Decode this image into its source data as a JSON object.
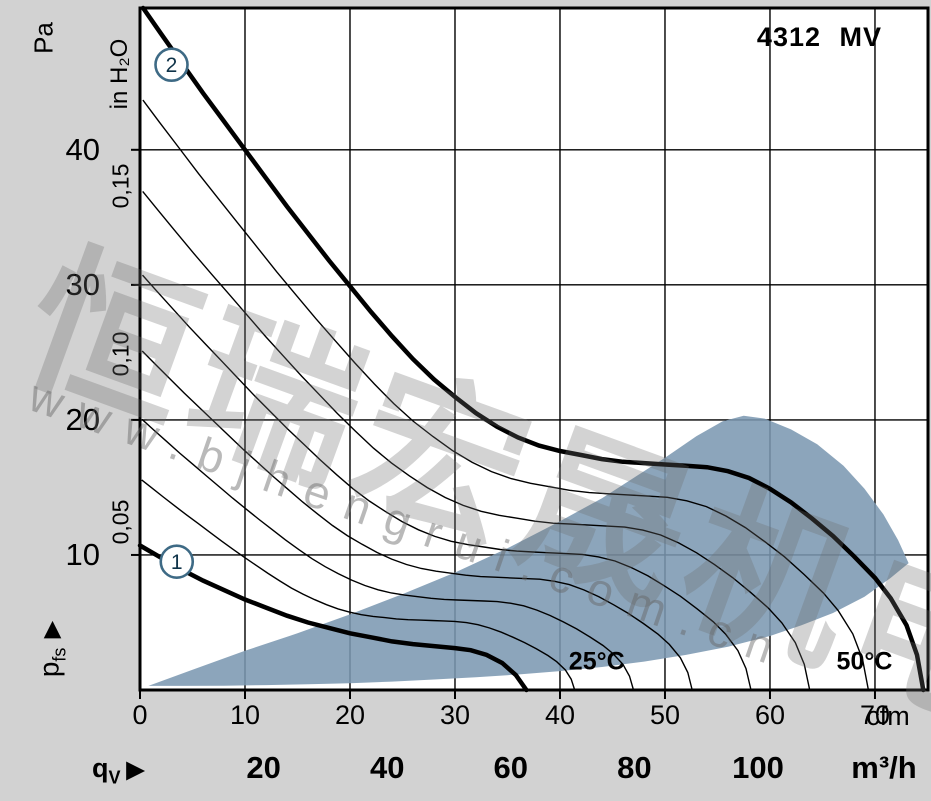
{
  "title": "4312 MV",
  "watermark": {
    "cjk": "恒瑞宏晟机电",
    "url": "www.bjhengrui.com.cn"
  },
  "labels": {
    "pa_unit": "Pa",
    "inh2o_unit": "in H₂O",
    "cfm_unit": "cfm",
    "m3h_unit": "m³/h",
    "pfs_main": "p",
    "pfs_sub": "fs",
    "qv_main": "q",
    "qv_sub": "V",
    "arrow": "▶"
  },
  "colors": {
    "background": "#d2d2d2",
    "plot_background": "#ffffff",
    "grid": "#000000",
    "curve": "#000000",
    "region_fill": "#7b98b1",
    "marker_ring": "#3e6a85",
    "marker_text": "#0f3349"
  },
  "chart_data": {
    "type": "line",
    "title": "4312 MV",
    "description": "Fan performance curves: static pressure pfs vs volume flow qV with operating region between 25°C and 50°C",
    "x_axis_primary": {
      "unit": "cfm",
      "ticks": [
        0,
        10,
        20,
        30,
        40,
        50,
        60,
        70
      ],
      "range": [
        0,
        75.05
      ]
    },
    "x_axis_secondary": {
      "unit": "m³/h",
      "ticks": [
        20,
        40,
        60,
        80,
        100
      ],
      "cfm_per_m3h": 0.5886
    },
    "y_axis_primary": {
      "unit": "Pa",
      "ticks": [
        10,
        20,
        30,
        40
      ],
      "range": [
        0,
        50.5
      ]
    },
    "y_axis_secondary": {
      "unit": "in H₂O",
      "ticks": [
        {
          "label": "0,05",
          "pa": 12.45
        },
        {
          "label": "0,10",
          "pa": 24.9
        },
        {
          "label": "0,15",
          "pa": 37.35
        }
      ]
    },
    "series": [
      {
        "name": "max-speed-curve",
        "marker": "2",
        "marker_pos": {
          "cfm": 3.0,
          "pa": 46.3
        },
        "points": [
          [
            0.3,
            50.5
          ],
          [
            2,
            48.6
          ],
          [
            4,
            46.4
          ],
          [
            6,
            44.2
          ],
          [
            8,
            42.1
          ],
          [
            10,
            40
          ],
          [
            12,
            37.9
          ],
          [
            14,
            35.8
          ],
          [
            16,
            33.8
          ],
          [
            18,
            31.8
          ],
          [
            20,
            29.9
          ],
          [
            22,
            28
          ],
          [
            24,
            26.2
          ],
          [
            26,
            24.5
          ],
          [
            28,
            23
          ],
          [
            30,
            21.7
          ],
          [
            32,
            20.5
          ],
          [
            34,
            19.5
          ],
          [
            36,
            18.7
          ],
          [
            38,
            18.1
          ],
          [
            40,
            17.7
          ],
          [
            42,
            17.4
          ],
          [
            44,
            17.1
          ],
          [
            46,
            16.9
          ],
          [
            48,
            16.8
          ],
          [
            50,
            16.7
          ],
          [
            52,
            16.6
          ],
          [
            54,
            16.5
          ],
          [
            56,
            16.2
          ],
          [
            58,
            15.7
          ],
          [
            60,
            14.9
          ],
          [
            62,
            13.9
          ],
          [
            64,
            12.7
          ],
          [
            66,
            11.4
          ],
          [
            68,
            9.9
          ],
          [
            70,
            8.3
          ],
          [
            71.5,
            6.8
          ],
          [
            73,
            4.8
          ],
          [
            74,
            2.6
          ],
          [
            74.6,
            0
          ]
        ]
      },
      {
        "name": "min-speed-curve",
        "marker": "1",
        "marker_pos": {
          "cfm": 3.5,
          "pa": 9.5
        },
        "points": [
          [
            0,
            10.7
          ],
          [
            2,
            9.8
          ],
          [
            4,
            8.9
          ],
          [
            6,
            8.1
          ],
          [
            8,
            7.4
          ],
          [
            10,
            6.7
          ],
          [
            12,
            6.1
          ],
          [
            14,
            5.5
          ],
          [
            16,
            5
          ],
          [
            18,
            4.6
          ],
          [
            20,
            4.2
          ],
          [
            22,
            3.9
          ],
          [
            24,
            3.6
          ],
          [
            26,
            3.4
          ],
          [
            28,
            3.25
          ],
          [
            30,
            3.1
          ],
          [
            31.5,
            2.95
          ],
          [
            33,
            2.6
          ],
          [
            34.5,
            2
          ],
          [
            35.8,
            1.1
          ],
          [
            36.8,
            0
          ]
        ]
      }
    ],
    "thin_curve_speed_ratios": [
      0.93,
      0.855,
      0.78,
      0.705,
      0.63,
      0.555
    ],
    "operating_region": {
      "color": "#7b98b1",
      "points": [
        [
          0.8,
          0.3
        ],
        [
          5,
          1.5
        ],
        [
          10,
          2.9
        ],
        [
          15,
          4.2
        ],
        [
          20,
          5.6
        ],
        [
          25,
          7.1
        ],
        [
          30,
          8.7
        ],
        [
          35,
          10.5
        ],
        [
          40,
          12.5
        ],
        [
          44,
          14.2
        ],
        [
          47,
          15.7
        ],
        [
          50,
          17.2
        ],
        [
          53,
          18.8
        ],
        [
          55.5,
          19.9
        ],
        [
          57.5,
          20.3
        ],
        [
          59.5,
          20.1
        ],
        [
          62,
          19.3
        ],
        [
          64.5,
          18.2
        ],
        [
          67,
          16.6
        ],
        [
          69,
          14.9
        ],
        [
          70.8,
          13
        ],
        [
          72.2,
          11.1
        ],
        [
          73.2,
          9.4
        ],
        [
          71.5,
          8.3
        ],
        [
          69,
          6.9
        ],
        [
          66,
          5.7
        ],
        [
          63,
          4.8
        ],
        [
          60,
          4
        ],
        [
          56,
          3.2
        ],
        [
          52,
          2.6
        ],
        [
          48,
          2.1
        ],
        [
          44,
          1.7
        ],
        [
          40,
          1.4
        ],
        [
          36,
          1.15
        ],
        [
          32,
          0.95
        ],
        [
          28,
          0.78
        ],
        [
          24,
          0.62
        ],
        [
          20,
          0.5
        ],
        [
          16,
          0.42
        ],
        [
          12,
          0.36
        ],
        [
          8,
          0.32
        ],
        [
          4,
          0.3
        ]
      ]
    },
    "annotations": [
      {
        "text": "25°C",
        "cfm": 43.5,
        "pa": 1.5
      },
      {
        "text": "50°C",
        "cfm": 69.0,
        "pa": 1.5
      }
    ]
  }
}
